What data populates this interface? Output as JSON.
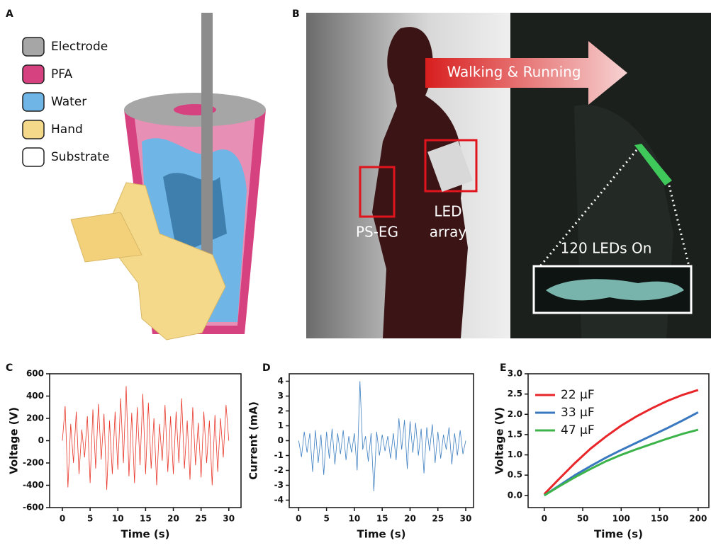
{
  "panel_a": {
    "label": "A",
    "legend": [
      {
        "label": "Electrode",
        "color": "#a6a6a6"
      },
      {
        "label": "PFA",
        "color": "#d6417f"
      },
      {
        "label": "Water",
        "color": "#6fb5e6"
      },
      {
        "label": "Hand",
        "color": "#f5d98a"
      },
      {
        "label": "Substrate",
        "color": "#ffffff"
      }
    ]
  },
  "panel_b": {
    "label": "B",
    "arrow_text": "Walking & Running",
    "box_labels": [
      "PS-EG",
      "LED",
      "array"
    ],
    "inset_text": "120 LEDs On"
  },
  "chart_data": [
    {
      "type": "line",
      "panel_label": "C",
      "xlabel": "Time (s)",
      "ylabel": "Voltage (V)",
      "color": "#e8372a",
      "x": [
        0,
        0.5,
        1,
        1.5,
        2,
        2.5,
        3,
        3.5,
        4,
        4.5,
        5,
        5.5,
        6,
        6.5,
        7,
        7.5,
        8,
        8.5,
        9,
        9.5,
        10,
        10.5,
        11,
        11.5,
        12,
        12.5,
        13,
        13.5,
        14,
        14.5,
        15,
        15.5,
        16,
        16.5,
        17,
        17.5,
        18,
        18.5,
        19,
        19.5,
        20,
        20.5,
        21,
        21.5,
        22,
        22.5,
        23,
        23.5,
        24,
        24.5,
        25,
        25.5,
        26,
        26.5,
        27,
        27.5,
        28,
        28.5,
        29,
        29.5,
        30
      ],
      "values": [
        0,
        310,
        -420,
        150,
        -200,
        260,
        -300,
        100,
        -150,
        220,
        -380,
        280,
        -250,
        330,
        -170,
        240,
        -440,
        180,
        -300,
        260,
        -260,
        380,
        -200,
        490,
        -320,
        250,
        -380,
        300,
        -220,
        420,
        -300,
        340,
        -250,
        200,
        -400,
        150,
        -180,
        320,
        -280,
        220,
        -300,
        260,
        -200,
        380,
        -250,
        180,
        -350,
        300,
        -220,
        160,
        -330,
        260,
        -200,
        180,
        -400,
        230,
        -280,
        200,
        -150,
        320,
        0
      ],
      "xlim": [
        -2.3,
        32.2
      ],
      "ylim": [
        -600,
        600
      ],
      "xticks": [
        0,
        5,
        10,
        15,
        20,
        25,
        30
      ],
      "yticks": [
        -600,
        -400,
        -200,
        0,
        200,
        400,
        600
      ]
    },
    {
      "type": "line",
      "panel_label": "D",
      "xlabel": "Time (s)",
      "ylabel": "Current (mA)",
      "color": "#3d7fc1",
      "x": [
        0,
        0.5,
        1,
        1.5,
        2,
        2.5,
        3,
        3.5,
        4,
        4.5,
        5,
        5.5,
        6,
        6.5,
        7,
        7.5,
        8,
        8.5,
        9,
        9.5,
        10,
        10.5,
        11,
        11.5,
        12,
        12.5,
        13,
        13.5,
        14,
        14.5,
        15,
        15.5,
        16,
        16.5,
        17,
        17.5,
        18,
        18.5,
        19,
        19.5,
        20,
        20.5,
        21,
        21.5,
        22,
        22.5,
        23,
        23.5,
        24,
        24.5,
        25,
        25.5,
        26,
        26.5,
        27,
        27.5,
        28,
        28.5,
        29,
        29.5,
        30
      ],
      "values": [
        0,
        -1.1,
        0.6,
        -0.8,
        0.5,
        -2.1,
        0.7,
        -1.5,
        0.4,
        -2.3,
        0.6,
        -1.2,
        0.8,
        -1.6,
        0.5,
        -0.9,
        0.7,
        -1.3,
        0.3,
        -0.8,
        0.5,
        -2.0,
        4.0,
        -0.6,
        0.3,
        -1.4,
        0.5,
        -3.4,
        0.6,
        -1.0,
        0.4,
        -0.7,
        0.3,
        -1.2,
        0.5,
        -1.3,
        1.5,
        -0.6,
        1.4,
        -1.9,
        1.3,
        -0.8,
        1.2,
        -1.0,
        0.8,
        -2.2,
        0.9,
        -0.7,
        1.1,
        -1.5,
        0.6,
        -1.2,
        0.4,
        -0.6,
        0.9,
        -1.6,
        0.5,
        -1.0,
        0.7,
        -0.9,
        0
      ],
      "xlim": [
        -1.7,
        31.4
      ],
      "ylim": [
        -4.5,
        4.5
      ],
      "xticks": [
        0,
        5,
        10,
        15,
        20,
        25,
        30
      ],
      "yticks": [
        -4,
        -3,
        -2,
        -1,
        0,
        1,
        2,
        3,
        4
      ]
    },
    {
      "type": "line",
      "panel_label": "E",
      "xlabel": "Time (s)",
      "ylabel": "Voltage (V)",
      "x": [
        0,
        20,
        40,
        60,
        80,
        100,
        120,
        140,
        160,
        180,
        200
      ],
      "series": [
        {
          "name": "22 μF",
          "color": "#e8262a",
          "values": [
            0.03,
            0.42,
            0.8,
            1.15,
            1.45,
            1.72,
            1.95,
            2.15,
            2.33,
            2.48,
            2.6
          ]
        },
        {
          "name": "33 μF",
          "color": "#3a78c0",
          "values": [
            0,
            0.25,
            0.5,
            0.72,
            0.93,
            1.12,
            1.3,
            1.48,
            1.66,
            1.85,
            2.05
          ]
        },
        {
          "name": "47 μF",
          "color": "#3cb44a",
          "values": [
            0,
            0.23,
            0.45,
            0.65,
            0.84,
            1.0,
            1.14,
            1.27,
            1.4,
            1.52,
            1.62
          ]
        }
      ],
      "xlim": [
        -21,
        214
      ],
      "ylim": [
        -0.3,
        3
      ],
      "xticks": [
        0,
        50,
        100,
        150,
        200
      ],
      "yticks": [
        {
          "value": 0,
          "label": "0.0"
        },
        0.5,
        {
          "value": 1,
          "label": "1.0"
        },
        1.5,
        {
          "value": 2,
          "label": "2.0"
        },
        2.5,
        {
          "value": 3,
          "label": "3.0"
        }
      ]
    }
  ]
}
